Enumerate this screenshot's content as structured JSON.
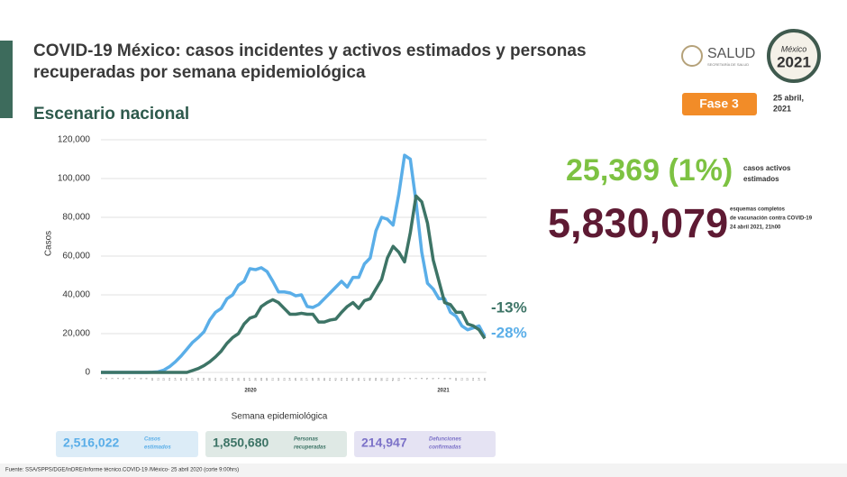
{
  "header": {
    "title": [
      "COVID-19 México: casos incidentes y activos estimados y personas",
      "recuperadas por semana epidemiológica"
    ],
    "subtitle": "Escenario nacional",
    "phase": "Fase 3",
    "date": [
      "25 abril,",
      "2021"
    ],
    "logo_salud": "SALUD",
    "logo_salud_sub": "SECRETARÍA DE SALUD",
    "logo_year": [
      "México",
      "2021"
    ]
  },
  "chart_data": {
    "type": "line",
    "x_label": "Semana epidemiológica",
    "y_label": "Casos",
    "year_labels": [
      "2020",
      "2021"
    ],
    "categories": [
      "1",
      "2",
      "3",
      "4",
      "5",
      "6",
      "7",
      "8",
      "9",
      "10",
      "11",
      "12",
      "13",
      "14",
      "15",
      "16",
      "17",
      "18",
      "19",
      "20",
      "21",
      "22",
      "23",
      "24",
      "25",
      "26",
      "27",
      "28",
      "29",
      "30",
      "31",
      "32",
      "33",
      "34",
      "35",
      "36",
      "37",
      "38",
      "39",
      "40",
      "41",
      "42",
      "43",
      "44",
      "45",
      "46",
      "47",
      "48",
      "49",
      "50",
      "51",
      "52",
      "53",
      "1",
      "2",
      "3",
      "4",
      "5",
      "6",
      "7",
      "8",
      "9",
      "10",
      "11",
      "12",
      "13",
      "14",
      "15"
    ],
    "series": [
      {
        "color": "#5aaee8",
        "values": [
          0,
          0,
          0,
          0,
          0,
          0,
          0,
          0,
          0,
          100,
          300,
          1200,
          3000,
          5500,
          8500,
          12000,
          15500,
          18000,
          21000,
          27000,
          31000,
          33000,
          38000,
          40000,
          45000,
          47000,
          53500,
          53000,
          54000,
          52000,
          47000,
          41500,
          41500,
          41000,
          39500,
          40000,
          34000,
          33500,
          35000,
          38000,
          41000,
          44000,
          47000,
          44000,
          49000,
          49000,
          56000,
          59000,
          73000,
          80000,
          79000,
          76000,
          92000,
          112000,
          110000,
          88000,
          62000,
          46000,
          43000,
          38000,
          38000,
          31000,
          29000,
          24000,
          22000,
          23000,
          24000,
          18500
        ]
      },
      {
        "color": "#3d7466",
        "values": [
          0,
          0,
          0,
          0,
          0,
          0,
          0,
          0,
          0,
          0,
          0,
          0,
          0,
          0,
          0,
          0,
          1000,
          2000,
          3500,
          5500,
          8000,
          11000,
          15000,
          18000,
          20000,
          25000,
          28000,
          29000,
          34000,
          36000,
          37500,
          36000,
          33000,
          30000,
          30000,
          30500,
          30000,
          30000,
          26000,
          26000,
          27000,
          27500,
          31000,
          34000,
          36000,
          33000,
          37000,
          38000,
          43000,
          48000,
          59000,
          65000,
          62000,
          57000,
          72000,
          91000,
          88000,
          77000,
          58000,
          47000,
          36000,
          35000,
          31000,
          31000,
          25000,
          24000,
          22000,
          17500
        ]
      }
    ],
    "ylim": [
      0,
      120000
    ],
    "yticks": [
      0,
      {
        "value": 20000,
        "label": "20,000"
      },
      {
        "value": 40000,
        "label": "40,000"
      },
      {
        "value": 60000,
        "label": "60,000"
      },
      {
        "value": 80000,
        "label": "80,000"
      },
      {
        "value": 100000,
        "label": "100,000"
      },
      {
        "value": 120000,
        "label": "120,000"
      }
    ],
    "grid": true,
    "annotations": [
      "-13%",
      "-28%"
    ]
  },
  "highlights": {
    "active": "25,369 (1%)",
    "active_label": [
      "casos activos",
      "estimados"
    ],
    "vaccinated": "5,830,079",
    "vaccinated_label": [
      "esquemas completos",
      "de vacunación contra COVID-19",
      "24 abril 2021, 21h00"
    ]
  },
  "totals": [
    {
      "value": "2,516,022",
      "label": [
        "Casos",
        "estimados"
      ]
    },
    {
      "value": "1,850,680",
      "label": [
        "Personas",
        "recuperadas"
      ]
    },
    {
      "value": "214,947",
      "label": [
        "Defunciones",
        "confirmadas"
      ]
    }
  ],
  "footer": "Fuente: SSA/SPPS/DGE/InDRE/Informe técnico.COVID-19 /México- 25 abril 2020 (corte 9:00hrs)"
}
